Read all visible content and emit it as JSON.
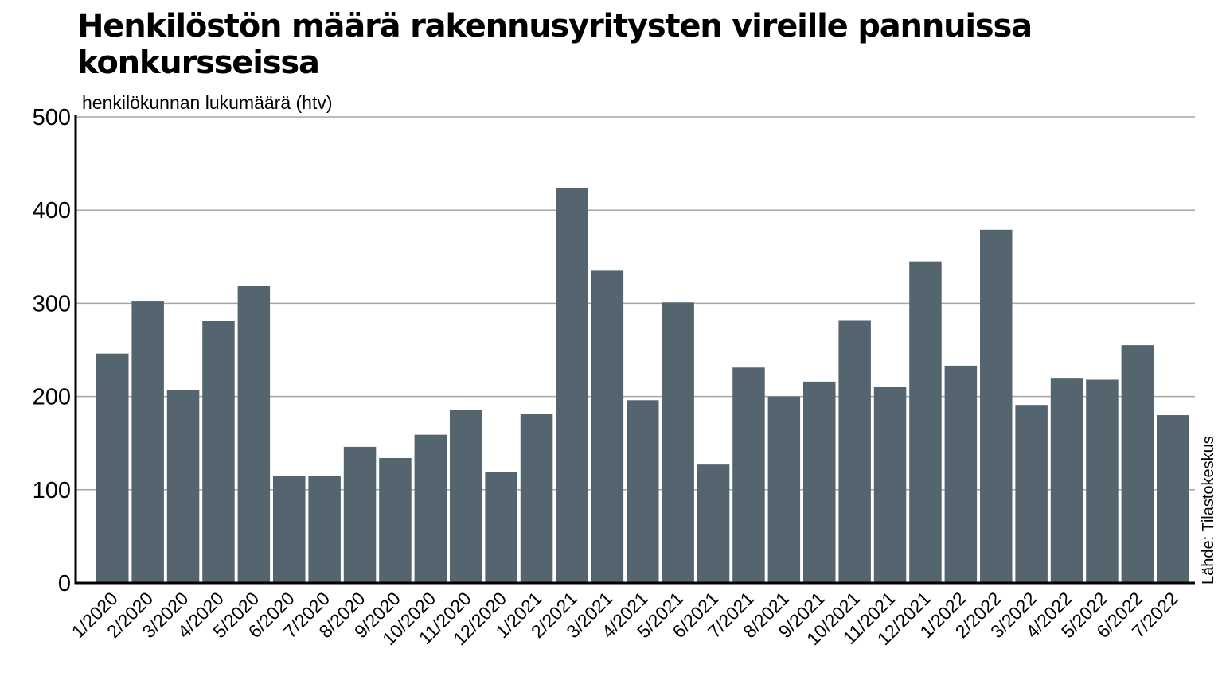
{
  "chart_data": {
    "type": "bar",
    "title": "Henkilöstön määrä rakennusyritysten vireille pannuissa konkursseissa",
    "ylabel": "henkilökunnan lukumäärä (htv)",
    "xlabel": "",
    "ylim": [
      0,
      500
    ],
    "yticks": [
      0,
      100,
      200,
      300,
      400,
      500
    ],
    "grid": true,
    "source": "Lähde: Tilastokeskus",
    "bar_color": "#546570",
    "categories": [
      "1/2020",
      "2/2020",
      "3/2020",
      "4/2020",
      "5/2020",
      "6/2020",
      "7/2020",
      "8/2020",
      "9/2020",
      "10/2020",
      "11/2020",
      "12/2020",
      "1/2021",
      "2/2021",
      "3/2021",
      "4/2021",
      "5/2021",
      "6/2021",
      "7/2021",
      "8/2021",
      "9/2021",
      "10/2021",
      "11/2021",
      "12/2021",
      "1/2022",
      "2/2022",
      "3/2022",
      "4/2022",
      "5/2022",
      "6/2022",
      "7/2022"
    ],
    "values": [
      246,
      302,
      207,
      281,
      319,
      115,
      115,
      146,
      134,
      159,
      186,
      119,
      181,
      424,
      335,
      196,
      301,
      127,
      231,
      200,
      216,
      282,
      210,
      345,
      233,
      379,
      191,
      220,
      218,
      255,
      180
    ]
  }
}
